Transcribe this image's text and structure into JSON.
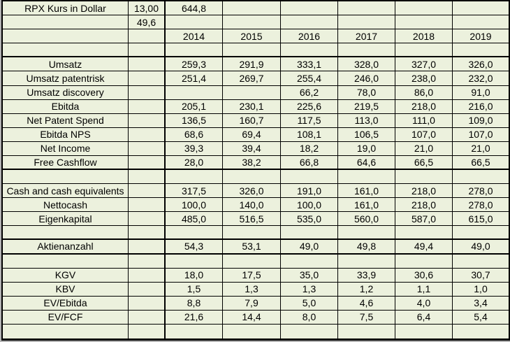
{
  "app": {
    "type": "spreadsheet-financial-table",
    "title": "RPX Kurs in Dollar"
  },
  "colors": {
    "cell_background": "#ecf1dd",
    "grid_line": "#000000",
    "text": "#000000",
    "page_margin": "#b5b5b5"
  },
  "sheet": {
    "years": [
      "2014",
      "2015",
      "2016",
      "2017",
      "2018",
      "2019"
    ],
    "rows": [
      [
        "RPX Kurs in Dollar",
        "13,00",
        "644,8",
        "",
        "",
        "",
        "",
        ""
      ],
      [
        "",
        "49,6",
        "",
        "",
        "",
        "",
        "",
        ""
      ],
      [
        "",
        "",
        "2014",
        "2015",
        "2016",
        "2017",
        "2018",
        "2019"
      ],
      [
        "",
        "",
        "",
        "",
        "",
        "",
        "",
        ""
      ],
      [
        "Umsatz",
        "",
        "259,3",
        "291,9",
        "333,1",
        "328,0",
        "327,0",
        "326,0"
      ],
      [
        "Umsatz patentrisk",
        "",
        "251,4",
        "269,7",
        "255,4",
        "246,0",
        "238,0",
        "232,0"
      ],
      [
        "Umsatz discovery",
        "",
        "",
        "",
        "66,2",
        "78,0",
        "86,0",
        "91,0"
      ],
      [
        "Ebitda",
        "",
        "205,1",
        "230,1",
        "225,6",
        "219,5",
        "218,0",
        "216,0"
      ],
      [
        "Net Patent Spend",
        "",
        "136,5",
        "160,7",
        "117,5",
        "113,0",
        "111,0",
        "109,0"
      ],
      [
        "Ebitda NPS",
        "",
        "68,6",
        "69,4",
        "108,1",
        "106,5",
        "107,0",
        "107,0"
      ],
      [
        "Net Income",
        "",
        "39,3",
        "39,4",
        "18,2",
        "19,0",
        "21,0",
        "21,0"
      ],
      [
        "Free Cashflow",
        "",
        "28,0",
        "38,2",
        "66,8",
        "64,6",
        "66,5",
        "66,5"
      ],
      [
        "",
        "",
        "",
        "",
        "",
        "",
        "",
        ""
      ],
      [
        "Cash and cash equivalents",
        "",
        "317,5",
        "326,0",
        "191,0",
        "161,0",
        "218,0",
        "278,0"
      ],
      [
        "Nettocash",
        "",
        "100,0",
        "140,0",
        "100,0",
        "161,0",
        "218,0",
        "278,0"
      ],
      [
        "Eigenkapital",
        "",
        "485,0",
        "516,5",
        "535,0",
        "560,0",
        "587,0",
        "615,0"
      ],
      [
        "",
        "",
        "",
        "",
        "",
        "",
        "",
        ""
      ],
      [
        "Aktienanzahl",
        "",
        "54,3",
        "53,1",
        "49,0",
        "49,8",
        "49,4",
        "49,0"
      ],
      [
        "",
        "",
        "",
        "",
        "",
        "",
        "",
        ""
      ],
      [
        "KGV",
        "",
        "18,0",
        "17,5",
        "35,0",
        "33,9",
        "30,6",
        "30,7"
      ],
      [
        "KBV",
        "",
        "1,5",
        "1,3",
        "1,3",
        "1,2",
        "1,1",
        "1,0"
      ],
      [
        "EV/Ebitda",
        "",
        "8,8",
        "7,9",
        "5,0",
        "4,6",
        "4,0",
        "3,4"
      ],
      [
        "EV/FCF",
        "",
        "21,6",
        "14,4",
        "8,0",
        "7,5",
        "6,4",
        "5,4"
      ],
      [
        "",
        "",
        "",
        "",
        "",
        "",
        "",
        ""
      ]
    ]
  }
}
